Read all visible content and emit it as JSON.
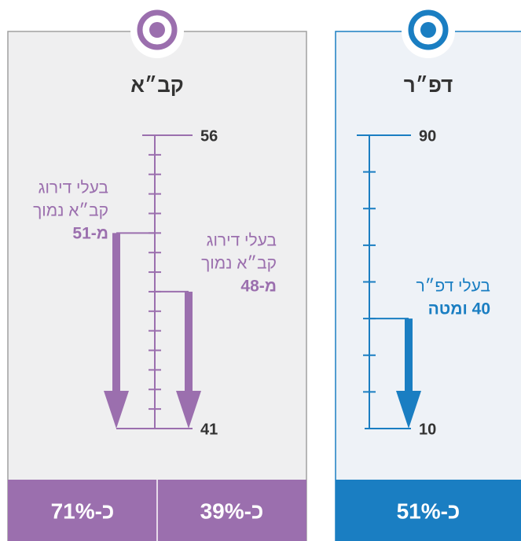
{
  "panels": [
    {
      "title": "קב״א",
      "color": "#9b6fae",
      "scale": {
        "max": 56,
        "min": 41,
        "step": 1
      },
      "arrows": [
        {
          "value": 51,
          "lines": [
            "בעלי דירוג",
            "קב״א נמוך",
            "מ-51"
          ]
        },
        {
          "value": 48,
          "lines": [
            "בעלי דירוג",
            "קב״א נמוך",
            "מ-48"
          ]
        }
      ],
      "footer": [
        "כ-71%",
        "כ-39%"
      ]
    },
    {
      "title": "דפ״ר",
      "color": "#1a7ec2",
      "scale": {
        "max": 90,
        "min": 10,
        "step": 10
      },
      "arrows": [
        {
          "value": 40,
          "lines": [
            "בעלי דפ״ר",
            "40 ומטה"
          ]
        }
      ],
      "footer": [
        "כ-51%"
      ]
    }
  ]
}
